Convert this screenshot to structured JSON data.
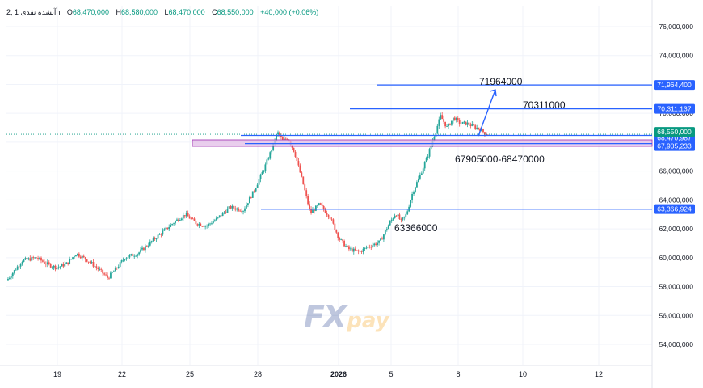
{
  "header": {
    "symbol": "آبشده نقدی 1 ,2h",
    "o_label": "O",
    "o_value": "68,470,000",
    "h_label": "H",
    "h_value": "68,580,000",
    "l_label": "L",
    "l_value": "68,470,000",
    "c_label": "C",
    "c_value": "68,550,000",
    "change": "+40,000 (+0.06%)"
  },
  "watermark": {
    "logo_text_1": "FX",
    "logo_text_2": "pay"
  },
  "colors": {
    "up": "#26a69a",
    "down": "#ef5350",
    "level_line": "#2962ff",
    "zone_fill": "#e1bee7",
    "zone_border": "#9c27b0",
    "price_tag": "#2962ff",
    "current_tag": "#089981"
  },
  "chart_data": {
    "type": "candlestick",
    "title": "",
    "xlabel": "",
    "ylabel": "",
    "x_ticks": [
      "19",
      "22",
      "25",
      "28",
      "2026",
      "5",
      "8",
      "10",
      "12"
    ],
    "y_ticks": [
      "54,000,000",
      "56,000,000",
      "58,000,000",
      "60,000,000",
      "62,000,000",
      "64,000,000",
      "66,000,000",
      "68,000,000",
      "70,000,000",
      "72,000,000",
      "74,000,000",
      "76,000,000"
    ],
    "ylim": [
      53000000,
      77000000
    ],
    "close_path": [
      {
        "t": 0,
        "v": 58400000
      },
      {
        "t": 1.2,
        "v": 59800000
      },
      {
        "t": 2.3,
        "v": 60000000
      },
      {
        "t": 3.0,
        "v": 59600000
      },
      {
        "t": 3.8,
        "v": 59300000
      },
      {
        "t": 4.6,
        "v": 59600000
      },
      {
        "t": 5.3,
        "v": 60300000
      },
      {
        "t": 6.2,
        "v": 59800000
      },
      {
        "t": 7.0,
        "v": 59200000
      },
      {
        "t": 7.7,
        "v": 58600000
      },
      {
        "t": 8.3,
        "v": 59200000
      },
      {
        "t": 9.0,
        "v": 60000000
      },
      {
        "t": 10.0,
        "v": 60300000
      },
      {
        "t": 11.5,
        "v": 61500000
      },
      {
        "t": 12.8,
        "v": 62500000
      },
      {
        "t": 13.6,
        "v": 63000000
      },
      {
        "t": 14.4,
        "v": 62400000
      },
      {
        "t": 15.2,
        "v": 62200000
      },
      {
        "t": 16.0,
        "v": 62700000
      },
      {
        "t": 17.0,
        "v": 63500000
      },
      {
        "t": 18.0,
        "v": 63300000
      },
      {
        "t": 18.8,
        "v": 64600000
      },
      {
        "t": 19.6,
        "v": 66200000
      },
      {
        "t": 20.2,
        "v": 67600000
      },
      {
        "t": 20.6,
        "v": 68700000
      },
      {
        "t": 21.0,
        "v": 68100000
      },
      {
        "t": 21.4,
        "v": 68300000
      },
      {
        "t": 21.9,
        "v": 67300000
      },
      {
        "t": 22.5,
        "v": 65300000
      },
      {
        "t": 23.1,
        "v": 63100000
      },
      {
        "t": 23.8,
        "v": 63700000
      },
      {
        "t": 24.6,
        "v": 62800000
      },
      {
        "t": 25.3,
        "v": 61300000
      },
      {
        "t": 26.0,
        "v": 60600000
      },
      {
        "t": 26.8,
        "v": 60400000
      },
      {
        "t": 27.6,
        "v": 60800000
      },
      {
        "t": 28.4,
        "v": 61100000
      },
      {
        "t": 29.0,
        "v": 62200000
      },
      {
        "t": 29.6,
        "v": 63100000
      },
      {
        "t": 30.0,
        "v": 62500000
      },
      {
        "t": 30.4,
        "v": 63000000
      },
      {
        "t": 30.9,
        "v": 64600000
      },
      {
        "t": 31.4,
        "v": 65600000
      },
      {
        "t": 32.0,
        "v": 67000000
      },
      {
        "t": 32.5,
        "v": 68400000
      },
      {
        "t": 33.0,
        "v": 69800000
      },
      {
        "t": 33.5,
        "v": 69000000
      },
      {
        "t": 34.0,
        "v": 69700000
      },
      {
        "t": 34.5,
        "v": 69300000
      },
      {
        "t": 35.0,
        "v": 69300000
      },
      {
        "t": 35.5,
        "v": 69100000
      },
      {
        "t": 36.0,
        "v": 68900000
      },
      {
        "t": 36.4,
        "v": 68600000
      },
      {
        "t": 36.6,
        "v": 68550000
      }
    ],
    "levels": [
      {
        "name": "71964000",
        "value": 71964400,
        "tag": "71,964,400",
        "label": "71964000"
      },
      {
        "name": "70311000",
        "value": 70311137,
        "tag": "70,311,137",
        "label": "70311000"
      },
      {
        "name": "zone_top",
        "value": 68470987,
        "tag": "68,470,987",
        "label": "67905000-68470000"
      },
      {
        "name": "zone_bottom",
        "value": 67905233,
        "tag": "67,905,233",
        "label": ""
      },
      {
        "name": "63366000",
        "value": 63366924,
        "tag": "63,366,924",
        "label": "63366000"
      }
    ],
    "current_price": {
      "value": 68550000,
      "tag": "68,550,000"
    },
    "zone": {
      "top": 68470987,
      "bottom": 67905233
    },
    "projection": {
      "from": 68550000,
      "to": 71964000
    }
  }
}
